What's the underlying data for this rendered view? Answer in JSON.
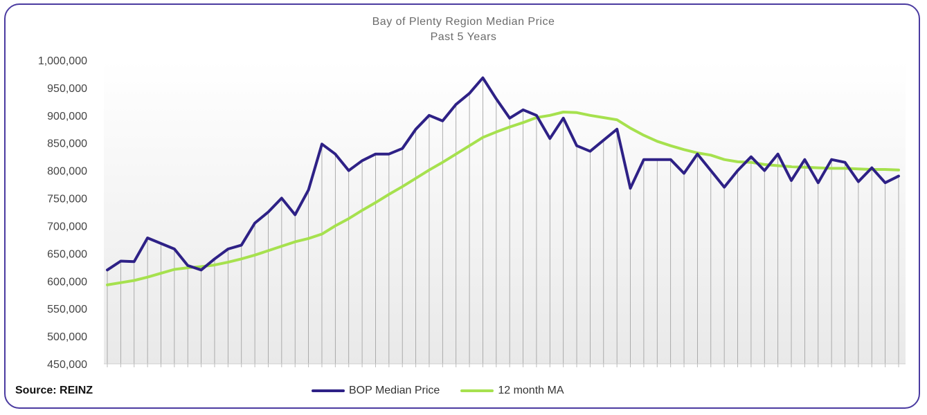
{
  "source_label": "Source: REINZ",
  "colors": {
    "median": "#2e2186",
    "ma": "#a6e14e",
    "frame": "#4a3aa0",
    "drop": "#9a9a9a"
  },
  "chart_data": {
    "type": "line",
    "title": "Bay of Plenty Region Median Price",
    "subtitle": "Past 5 Years",
    "ylim": [
      450000,
      1000000
    ],
    "yticks": [
      450000,
      500000,
      550000,
      600000,
      650000,
      700000,
      750000,
      800000,
      850000,
      900000,
      950000,
      1000000
    ],
    "ytick_labels": [
      "450,000",
      "500,000",
      "550,000",
      "600,000",
      "650,000",
      "700,000",
      "750,000",
      "800,000",
      "850,000",
      "900,000",
      "950,000",
      "1,000,000"
    ],
    "legend_position": "bottom",
    "series": [
      {
        "name": "BOP Median Price",
        "values": [
          620000,
          636000,
          635000,
          678000,
          668000,
          658000,
          628000,
          620000,
          640000,
          658000,
          665000,
          705000,
          725000,
          750000,
          720000,
          765000,
          848000,
          830000,
          800000,
          818000,
          830000,
          830000,
          840000,
          875000,
          900000,
          890000,
          920000,
          940000,
          968000,
          930000,
          895000,
          910000,
          900000,
          858000,
          895000,
          845000,
          835000,
          855000,
          875000,
          768000,
          820000,
          820000,
          820000,
          795000,
          830000,
          800000,
          770000,
          800000,
          825000,
          800000,
          830000,
          782000,
          820000,
          778000,
          820000,
          815000,
          780000,
          805000,
          778000,
          790000
        ]
      },
      {
        "name": "12 month MA",
        "values": [
          593000,
          597000,
          601000,
          607000,
          614000,
          621000,
          624000,
          626000,
          629000,
          634000,
          640000,
          647000,
          655000,
          663000,
          671000,
          677000,
          685000,
          700000,
          713000,
          728000,
          742000,
          757000,
          771000,
          786000,
          801000,
          815000,
          830000,
          845000,
          860000,
          870000,
          879000,
          887000,
          896000,
          900000,
          906000,
          905000,
          900000,
          896000,
          892000,
          877000,
          864000,
          853000,
          845000,
          838000,
          832000,
          828000,
          820000,
          816000,
          815000,
          811000,
          809000,
          807000,
          806000,
          805000,
          804000,
          804000,
          803000,
          802000,
          802000,
          801000
        ]
      }
    ]
  }
}
